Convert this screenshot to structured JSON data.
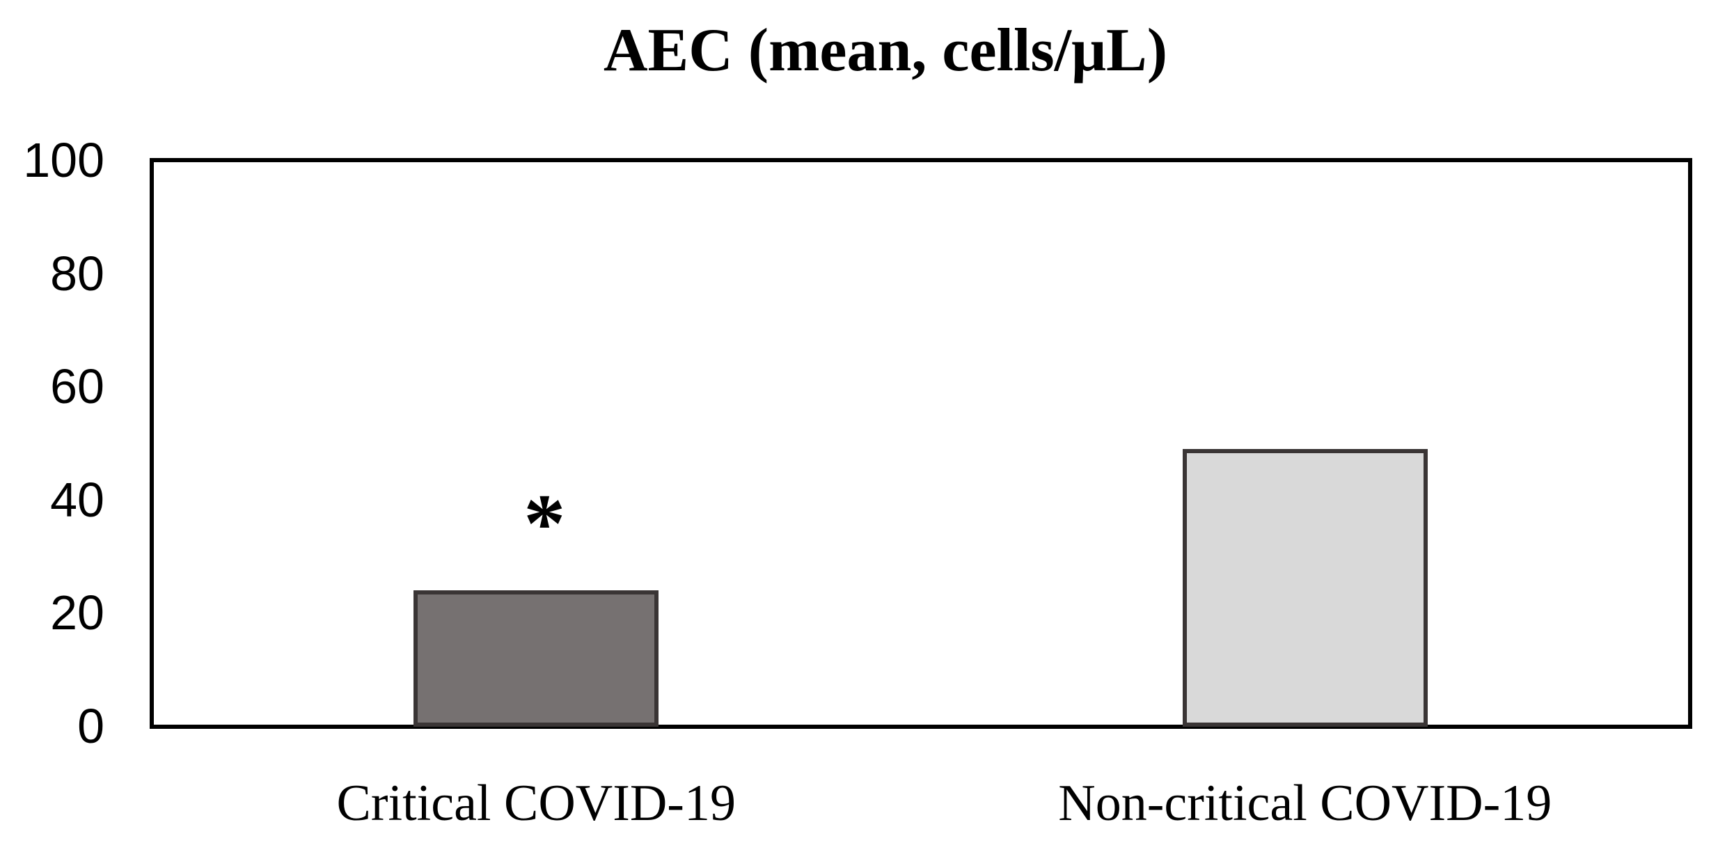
{
  "chart_data": {
    "type": "bar",
    "title": "AEC (mean, cells/μL)",
    "xlabel": "",
    "ylabel": "",
    "categories": [
      "Critical COVID-19",
      "Non-critical COVID-19"
    ],
    "values": [
      24,
      49
    ],
    "ylim": [
      0,
      100
    ],
    "yticks": [
      0,
      20,
      40,
      60,
      80,
      100
    ],
    "grid": false,
    "legend": "none",
    "bar_fill_colors": [
      "#767171",
      "#d9d9d9"
    ],
    "bar_border_color": "#3a3535",
    "axis_color": "#000000",
    "text_color": "#000000",
    "background_color": "#ffffff",
    "annotations": [
      {
        "text": "*",
        "category": "Critical COVID-19"
      }
    ]
  }
}
